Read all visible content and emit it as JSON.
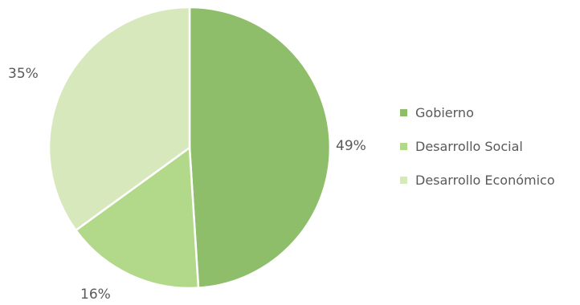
{
  "chart_data": {
    "type": "pie",
    "title": "",
    "legend_position": "right",
    "slices": [
      {
        "name": "Gobierno",
        "value": 49,
        "label": "49%",
        "color": "#8fbe6a"
      },
      {
        "name": "Desarrollo Social",
        "value": 16,
        "label": "16%",
        "color": "#b2d88a"
      },
      {
        "name": "Desarrollo Económico",
        "value": 35,
        "label": "35%",
        "color": "#d7e9bc"
      }
    ]
  }
}
